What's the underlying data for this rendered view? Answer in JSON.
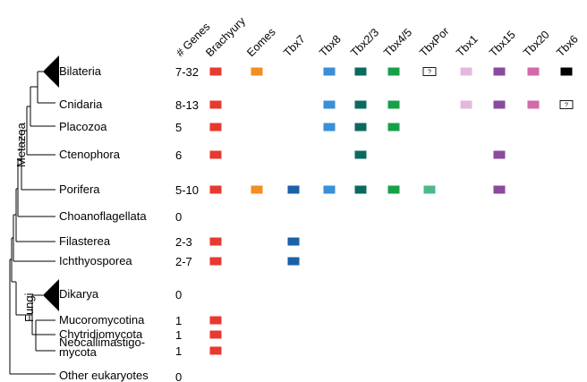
{
  "group_labels": {
    "metazoa": "Metazoa",
    "fungi": "Fungi"
  },
  "columns": [
    {
      "key": "ngenes",
      "label": "# Genes"
    },
    {
      "key": "brachyury",
      "label": "Brachyury",
      "color": "#e8392f"
    },
    {
      "key": "eomes",
      "label": "Eomes",
      "color": "#f28e22"
    },
    {
      "key": "tbx7",
      "label": "Tbx7",
      "color": "#1a61a8"
    },
    {
      "key": "tbx8",
      "label": "Tbx8",
      "color": "#3a8fd6"
    },
    {
      "key": "tbx23",
      "label": "Tbx2/3",
      "color": "#0b6a5e"
    },
    {
      "key": "tbx45",
      "label": "Tbx4/5",
      "color": "#18a049"
    },
    {
      "key": "tbxpor",
      "label": "TbxPor",
      "color": "#4cba8a"
    },
    {
      "key": "tbx1",
      "label": "Tbx1",
      "color": "#e6b7dc"
    },
    {
      "key": "tbx15",
      "label": "Tbx15",
      "color": "#8a4a9e"
    },
    {
      "key": "tbx20",
      "label": "Tbx20",
      "color": "#d16aaa"
    },
    {
      "key": "tbx6",
      "label": "Tbx6",
      "color": "#000000"
    }
  ],
  "uncertain_mark": "?",
  "rows": [
    {
      "taxon": "Bilateria",
      "genes": "7-32",
      "marks": {
        "brachyury": "filled",
        "eomes": "filled",
        "tbx8": "filled",
        "tbx23": "filled",
        "tbx45": "filled",
        "tbxpor": "uncertain",
        "tbx1": "filled",
        "tbx15": "filled",
        "tbx20": "filled",
        "tbx6": "filled"
      }
    },
    {
      "taxon": "Cnidaria",
      "genes": "8-13",
      "marks": {
        "brachyury": "filled",
        "tbx8": "filled",
        "tbx23": "filled",
        "tbx45": "filled",
        "tbx1": "filled",
        "tbx15": "filled",
        "tbx20": "filled",
        "tbx6": "uncertain"
      }
    },
    {
      "taxon": "Placozoa",
      "genes": "5",
      "marks": {
        "brachyury": "filled",
        "tbx8": "filled",
        "tbx23": "filled",
        "tbx45": "filled"
      }
    },
    {
      "taxon": "Ctenophora",
      "genes": "6",
      "marks": {
        "brachyury": "filled",
        "tbx23": "filled",
        "tbx15": "filled"
      }
    },
    {
      "taxon": "Porifera",
      "genes": "5-10",
      "marks": {
        "brachyury": "filled",
        "eomes": "filled",
        "tbx7": "filled",
        "tbx8": "filled",
        "tbx23": "filled",
        "tbx45": "filled",
        "tbxpor": "filled",
        "tbx15": "filled"
      }
    },
    {
      "taxon": "Choanoflagellata",
      "genes": "0",
      "marks": {}
    },
    {
      "taxon": "Filasterea",
      "genes": "2-3",
      "marks": {
        "brachyury": "filled",
        "tbx7": "filled"
      }
    },
    {
      "taxon": "Ichthyosporea",
      "genes": "2-7",
      "marks": {
        "brachyury": "filled",
        "tbx7": "filled"
      }
    },
    {
      "taxon": "Dikarya",
      "genes": "0",
      "marks": {}
    },
    {
      "taxon": "Mucoromycotina",
      "genes": "1",
      "marks": {
        "brachyury": "filled"
      }
    },
    {
      "taxon": "Chytridiomycota",
      "genes": "1",
      "marks": {
        "brachyury": "filled"
      }
    },
    {
      "taxon": "Neocallimastigo-\nmycota",
      "genes": "1",
      "marks": {
        "brachyury": "filled"
      }
    },
    {
      "taxon": "Other eukaryotes",
      "genes": "0",
      "marks": {}
    }
  ]
}
